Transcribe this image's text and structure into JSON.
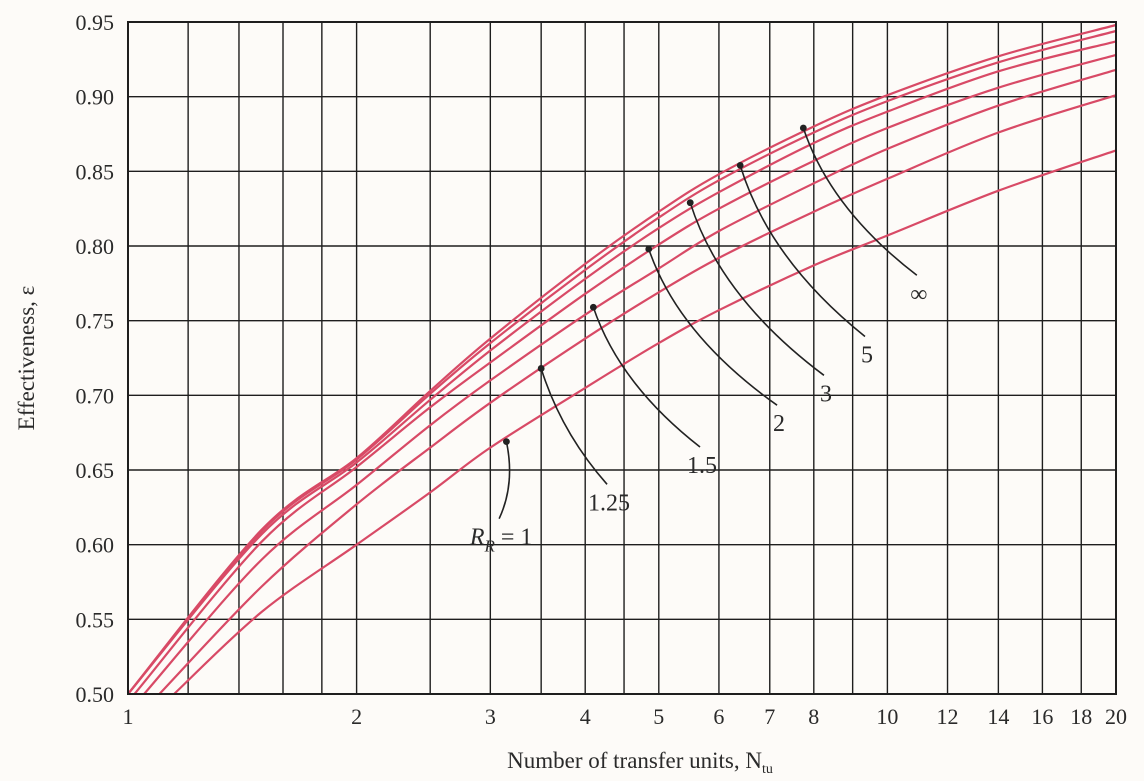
{
  "chart_data": {
    "type": "line",
    "xlabel": "Number of transfer units, N",
    "xlabel_sub": "tu",
    "ylabel": "Effectiveness, ε",
    "x_scale": "log",
    "xlim": [
      1,
      20
    ],
    "ylim": [
      0.5,
      0.95
    ],
    "x_ticks": [
      1,
      2,
      3,
      4,
      5,
      6,
      7,
      8,
      10,
      12,
      14,
      16,
      18,
      20
    ],
    "x_ticklabels": [
      "1",
      "2",
      "3",
      "4",
      "5",
      "6",
      "7",
      "8",
      "10",
      "12",
      "14",
      "16",
      "18",
      "20"
    ],
    "x_grid": [
      1,
      1.2,
      1.4,
      1.6,
      1.8,
      2,
      2.5,
      3,
      3.5,
      4,
      4.5,
      5,
      6,
      7,
      8,
      9,
      10,
      12,
      14,
      16,
      18,
      20
    ],
    "y_ticks": [
      0.5,
      0.55,
      0.6,
      0.65,
      0.7,
      0.75,
      0.8,
      0.85,
      0.9,
      0.95
    ],
    "y_ticklabels": [
      "0.50",
      "0.55",
      "0.60",
      "0.65",
      "0.70",
      "0.75",
      "0.80",
      "0.85",
      "0.90",
      "0.95"
    ],
    "grid": true,
    "curve_color": "#d84a66",
    "series": [
      {
        "name": "R_R = 1",
        "x": [
          1.15,
          1.5,
          2,
          2.5,
          3,
          4,
          5,
          6,
          8,
          10,
          14,
          20
        ],
        "y": [
          0.5,
          0.555,
          0.6,
          0.635,
          0.665,
          0.705,
          0.735,
          0.757,
          0.787,
          0.807,
          0.837,
          0.864
        ]
      },
      {
        "name": "1.25",
        "x": [
          1.1,
          1.5,
          2,
          2.5,
          3,
          4,
          5,
          6,
          8,
          10,
          14,
          20
        ],
        "y": [
          0.5,
          0.572,
          0.627,
          0.665,
          0.695,
          0.738,
          0.769,
          0.792,
          0.823,
          0.845,
          0.876,
          0.901
        ]
      },
      {
        "name": "1.5",
        "x": [
          1.05,
          1.5,
          2,
          2.5,
          3,
          4,
          5,
          6,
          8,
          10,
          14,
          20
        ],
        "y": [
          0.5,
          0.59,
          0.64,
          0.68,
          0.71,
          0.754,
          0.785,
          0.81,
          0.842,
          0.865,
          0.894,
          0.918
        ]
      },
      {
        "name": "2",
        "x": [
          1.02,
          1.5,
          2,
          2.5,
          3,
          4,
          5,
          6,
          8,
          10,
          14,
          20
        ],
        "y": [
          0.5,
          0.602,
          0.652,
          0.692,
          0.722,
          0.768,
          0.801,
          0.825,
          0.857,
          0.879,
          0.906,
          0.928
        ]
      },
      {
        "name": "3",
        "x": [
          1,
          1.5,
          2,
          2.5,
          3,
          4,
          5,
          6,
          8,
          10,
          14,
          20
        ],
        "y": [
          0.5,
          0.607,
          0.655,
          0.697,
          0.73,
          0.778,
          0.812,
          0.836,
          0.869,
          0.89,
          0.917,
          0.937
        ]
      },
      {
        "name": "5",
        "x": [
          1,
          1.5,
          2,
          2.5,
          3,
          4,
          5,
          6,
          8,
          10,
          14,
          20
        ],
        "y": [
          0.5,
          0.609,
          0.657,
          0.701,
          0.735,
          0.784,
          0.819,
          0.844,
          0.876,
          0.897,
          0.923,
          0.944
        ]
      },
      {
        "name": "∞",
        "x": [
          1,
          1.5,
          2,
          2.5,
          3,
          4,
          5,
          6,
          8,
          10,
          14,
          20
        ],
        "y": [
          0.5,
          0.61,
          0.658,
          0.703,
          0.738,
          0.788,
          0.823,
          0.848,
          0.88,
          0.901,
          0.927,
          0.948
        ]
      }
    ],
    "annotations": [
      {
        "text_main": "R",
        "text_sub": "R",
        "text_tail": " = 1",
        "point": [
          3.15,
          0.669
        ],
        "label_at": [
          3.1,
          0.6
        ]
      },
      {
        "text_main": "1.25",
        "point": [
          3.5,
          0.718
        ],
        "label_at": [
          4.3,
          0.623
        ]
      },
      {
        "text_main": "1.5",
        "point": [
          4.1,
          0.759
        ],
        "label_at": [
          5.7,
          0.648
        ]
      },
      {
        "text_main": "2",
        "point": [
          4.85,
          0.798
        ],
        "label_at": [
          7.2,
          0.676
        ]
      },
      {
        "text_main": "3",
        "point": [
          5.5,
          0.829
        ],
        "label_at": [
          8.3,
          0.696
        ]
      },
      {
        "text_main": "5",
        "point": [
          6.4,
          0.854
        ],
        "label_at": [
          9.4,
          0.722
        ]
      },
      {
        "text_main": "∞",
        "point": [
          7.75,
          0.879
        ],
        "label_at": [
          11.0,
          0.763
        ]
      }
    ]
  }
}
